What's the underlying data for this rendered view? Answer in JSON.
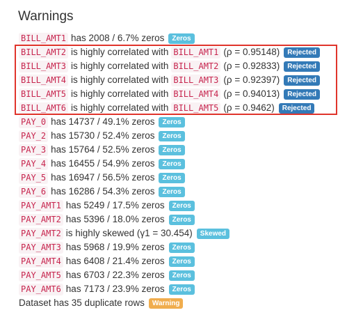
{
  "title": "Warnings",
  "rows": [
    {
      "col": "BILL_AMT1",
      "text": "has 2008 / 6.7% zeros",
      "badge": "Zeros",
      "badge_type": "zeros"
    },
    {
      "col": "BILL_AMT2",
      "text": "is highly correlated with",
      "col2": "BILL_AMT1",
      "text2": "(ρ = 0.95148)",
      "badge": "Rejected",
      "badge_type": "rejected"
    },
    {
      "col": "BILL_AMT3",
      "text": "is highly correlated with",
      "col2": "BILL_AMT2",
      "text2": "(ρ = 0.92833)",
      "badge": "Rejected",
      "badge_type": "rejected"
    },
    {
      "col": "BILL_AMT4",
      "text": "is highly correlated with",
      "col2": "BILL_AMT3",
      "text2": "(ρ = 0.92397)",
      "badge": "Rejected",
      "badge_type": "rejected"
    },
    {
      "col": "BILL_AMT5",
      "text": "is highly correlated with",
      "col2": "BILL_AMT4",
      "text2": "(ρ = 0.94013)",
      "badge": "Rejected",
      "badge_type": "rejected"
    },
    {
      "col": "BILL_AMT6",
      "text": "is highly correlated with",
      "col2": "BILL_AMT5",
      "text2": "(ρ = 0.9462)",
      "badge": "Rejected",
      "badge_type": "rejected"
    },
    {
      "col": "PAY_0",
      "text": "has 14737 / 49.1% zeros",
      "badge": "Zeros",
      "badge_type": "zeros"
    },
    {
      "col": "PAY_2",
      "text": "has 15730 / 52.4% zeros",
      "badge": "Zeros",
      "badge_type": "zeros"
    },
    {
      "col": "PAY_3",
      "text": "has 15764 / 52.5% zeros",
      "badge": "Zeros",
      "badge_type": "zeros"
    },
    {
      "col": "PAY_4",
      "text": "has 16455 / 54.9% zeros",
      "badge": "Zeros",
      "badge_type": "zeros"
    },
    {
      "col": "PAY_5",
      "text": "has 16947 / 56.5% zeros",
      "badge": "Zeros",
      "badge_type": "zeros"
    },
    {
      "col": "PAY_6",
      "text": "has 16286 / 54.3% zeros",
      "badge": "Zeros",
      "badge_type": "zeros"
    },
    {
      "col": "PAY_AMT1",
      "text": "has 5249 / 17.5% zeros",
      "badge": "Zeros",
      "badge_type": "zeros"
    },
    {
      "col": "PAY_AMT2",
      "text": "has 5396 / 18.0% zeros",
      "badge": "Zeros",
      "badge_type": "zeros"
    },
    {
      "col": "PAY_AMT2",
      "text": "is highly skewed (γ1 = 30.454)",
      "badge": "Skewed",
      "badge_type": "skewed"
    },
    {
      "col": "PAY_AMT3",
      "text": "has 5968 / 19.9% zeros",
      "badge": "Zeros",
      "badge_type": "zeros"
    },
    {
      "col": "PAY_AMT4",
      "text": "has 6408 / 21.4% zeros",
      "badge": "Zeros",
      "badge_type": "zeros"
    },
    {
      "col": "PAY_AMT5",
      "text": "has 6703 / 22.3% zeros",
      "badge": "Zeros",
      "badge_type": "zeros"
    },
    {
      "col": "PAY_AMT6",
      "text": "has 7173 / 23.9% zeros",
      "badge": "Zeros",
      "badge_type": "zeros"
    }
  ],
  "footer": {
    "text": "Dataset has 35 duplicate rows",
    "badge": "Warning",
    "badge_type": "warning"
  },
  "colors": {
    "highlight_border": "#e0342b",
    "zeros_badge": "#5bc0de",
    "rejected_badge": "#337ab7",
    "warning_badge": "#f0ad4e",
    "code_text": "#c7254e"
  }
}
